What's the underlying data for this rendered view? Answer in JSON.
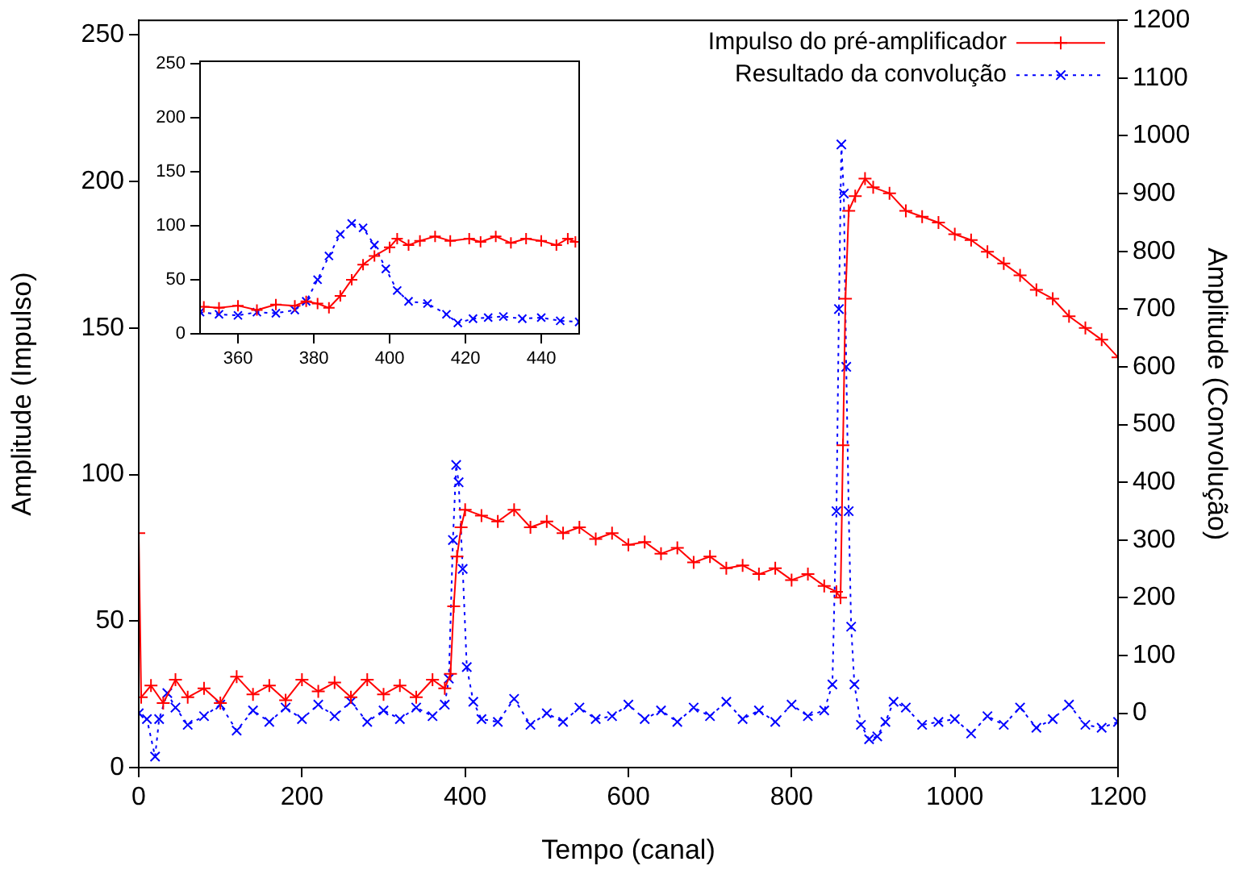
{
  "chart_data": [
    {
      "type": "line",
      "xlabel": "Tempo (canal)",
      "ylabel": "Amplitude (Impulso)",
      "y2label": "Amplitude (Convolução)",
      "xlim": [
        0,
        1200
      ],
      "xticks": [
        0,
        200,
        400,
        600,
        800,
        1000,
        1200
      ],
      "ylim": [
        0,
        255
      ],
      "yticks": [
        0,
        50,
        100,
        150,
        200,
        250
      ],
      "y2lim": [
        -94,
        1200
      ],
      "y2ticks": [
        0,
        100,
        200,
        300,
        400,
        500,
        600,
        700,
        800,
        900,
        1000,
        1100,
        1200
      ],
      "grid": false,
      "legend": "top right",
      "series": [
        {
          "name": "Impulso do pré-amplificador",
          "color": "#ff0000",
          "marker": "cross",
          "line_style": "solid",
          "x": [
            0,
            3,
            15,
            30,
            45,
            60,
            80,
            100,
            120,
            140,
            160,
            180,
            200,
            220,
            240,
            260,
            280,
            300,
            320,
            340,
            360,
            375,
            382,
            386,
            390,
            395,
            400,
            420,
            440,
            460,
            480,
            500,
            520,
            540,
            560,
            580,
            600,
            620,
            640,
            660,
            680,
            700,
            720,
            740,
            760,
            780,
            800,
            820,
            840,
            855,
            860,
            863,
            866,
            870,
            878,
            890,
            900,
            920,
            940,
            960,
            980,
            1000,
            1020,
            1040,
            1060,
            1080,
            1100,
            1120,
            1140,
            1160,
            1180,
            1200
          ],
          "values": [
            80,
            24,
            28,
            22,
            30,
            24,
            27,
            22,
            31,
            25,
            28,
            23,
            30,
            26,
            29,
            24,
            30,
            25,
            28,
            24,
            30,
            27,
            32,
            55,
            72,
            82,
            88,
            86,
            84,
            88,
            82,
            84,
            80,
            82,
            78,
            80,
            76,
            77,
            73,
            75,
            70,
            72,
            68,
            69,
            66,
            68,
            64,
            66,
            62,
            60,
            58,
            110,
            160,
            190,
            195,
            201,
            198,
            196,
            190,
            188,
            186,
            182,
            180,
            176,
            172,
            168,
            163,
            160,
            154,
            150,
            146,
            140
          ]
        },
        {
          "name": "Resultado da convolução",
          "color": "#0000ff",
          "marker": "cross",
          "line_style": "dotted",
          "axis": "y2",
          "x": [
            0,
            10,
            20,
            25,
            35,
            45,
            60,
            80,
            100,
            120,
            140,
            160,
            180,
            200,
            220,
            240,
            260,
            280,
            300,
            320,
            340,
            360,
            375,
            380,
            385,
            389,
            392,
            397,
            402,
            410,
            420,
            440,
            460,
            480,
            500,
            520,
            540,
            560,
            580,
            600,
            620,
            640,
            660,
            680,
            700,
            720,
            740,
            760,
            780,
            800,
            820,
            840,
            850,
            855,
            858,
            861,
            864,
            867,
            870,
            873,
            877,
            885,
            895,
            905,
            915,
            925,
            940,
            960,
            980,
            1000,
            1020,
            1040,
            1060,
            1080,
            1100,
            1120,
            1140,
            1160,
            1180,
            1200
          ],
          "values": [
            0,
            -10,
            -75,
            -10,
            35,
            10,
            -20,
            -5,
            15,
            -30,
            5,
            -15,
            10,
            -10,
            15,
            -5,
            20,
            -15,
            5,
            -10,
            10,
            -5,
            15,
            60,
            300,
            430,
            400,
            250,
            80,
            20,
            -10,
            -15,
            25,
            -20,
            0,
            -15,
            10,
            -10,
            -5,
            15,
            -10,
            5,
            -15,
            10,
            -5,
            20,
            -10,
            5,
            -15,
            15,
            -5,
            5,
            50,
            350,
            700,
            985,
            900,
            600,
            350,
            150,
            50,
            -20,
            -45,
            -40,
            -15,
            20,
            10,
            -20,
            -15,
            -10,
            -35,
            -5,
            -20,
            10,
            -25,
            -10,
            15,
            -20,
            -25,
            -15
          ]
        }
      ]
    },
    {
      "type": "line",
      "xlim": [
        350,
        450
      ],
      "xticks": [
        360,
        380,
        400,
        420,
        440
      ],
      "ylim": [
        0,
        252
      ],
      "yticks": [
        0,
        50,
        100,
        150,
        200,
        250
      ],
      "grid": false,
      "series": [
        {
          "color": "#ff0000",
          "marker": "cross",
          "line_style": "solid",
          "x": [
            351,
            355,
            360,
            365,
            370,
            375,
            378,
            381,
            384,
            387,
            390,
            393,
            396,
            400,
            402,
            405,
            408,
            412,
            416,
            421,
            424,
            428,
            432,
            436,
            440,
            444,
            447,
            449
          ],
          "values": [
            25,
            24,
            26,
            22,
            27,
            26,
            30,
            28,
            24,
            35,
            50,
            64,
            72,
            80,
            88,
            82,
            86,
            90,
            86,
            88,
            85,
            90,
            84,
            88,
            86,
            82,
            88,
            85
          ]
        },
        {
          "color": "#0000ff",
          "marker": "cross",
          "line_style": "dotted",
          "x": [
            350,
            355,
            360,
            365,
            370,
            375,
            378,
            381,
            384,
            387,
            390,
            393,
            396,
            399,
            402,
            405,
            410,
            415,
            418,
            422,
            426,
            430,
            435,
            440,
            445,
            450
          ],
          "values": [
            20,
            18,
            17,
            20,
            19,
            22,
            30,
            50,
            72,
            92,
            102,
            98,
            82,
            60,
            40,
            30,
            28,
            18,
            10,
            14,
            15,
            16,
            14,
            15,
            12,
            11
          ]
        }
      ]
    }
  ]
}
